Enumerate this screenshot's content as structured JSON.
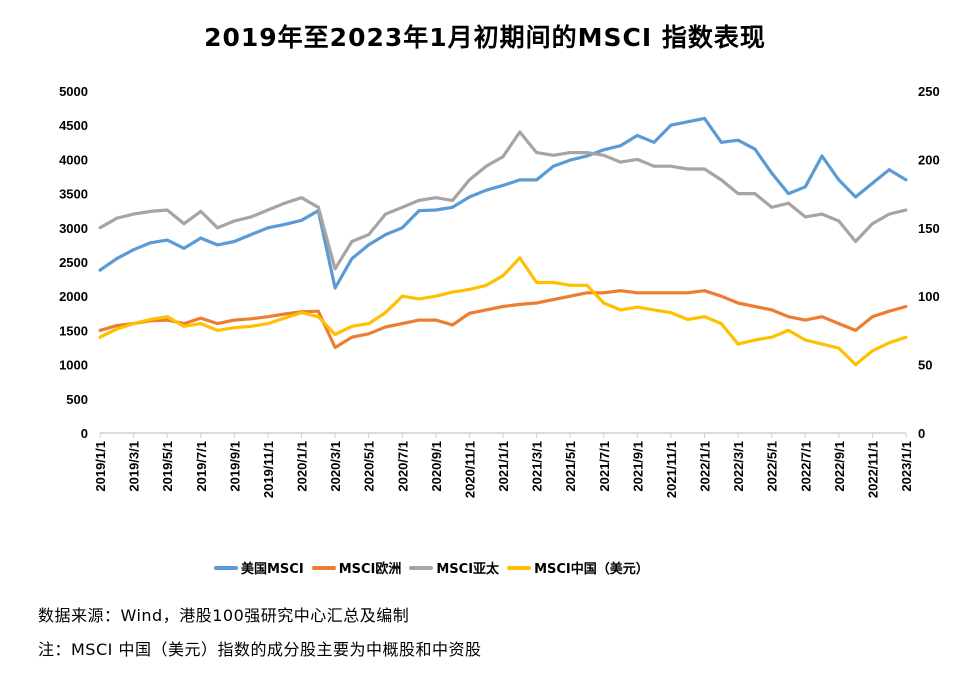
{
  "chart_data": {
    "type": "line",
    "title": "2019年至2023年1月初期间的MSCI 指数表现",
    "xlabel": "",
    "ylabel": "",
    "ylim_left": [
      0,
      5000
    ],
    "ylim_right": [
      0,
      250
    ],
    "left_ticks": [
      "0",
      "500",
      "1000",
      "1500",
      "2000",
      "2500",
      "3000",
      "3500",
      "4000",
      "4500",
      "5000"
    ],
    "right_ticks": [
      "0",
      "50",
      "100",
      "150",
      "200",
      "250"
    ],
    "x_tick_labels": [
      "2019/1/1",
      "2019/3/1",
      "2019/5/1",
      "2019/7/1",
      "2019/9/1",
      "2019/11/1",
      "2020/1/1",
      "2020/3/1",
      "2020/5/1",
      "2020/7/1",
      "2020/9/1",
      "2020/11/1",
      "2021/1/1",
      "2021/3/1",
      "2021/5/1",
      "2021/7/1",
      "2021/9/1",
      "2021/11/1",
      "2022/1/1",
      "2022/3/1",
      "2022/5/1",
      "2022/7/1",
      "2022/9/1",
      "2022/11/1",
      "2023/1/1"
    ],
    "grid": false,
    "legend_position": "bottom",
    "x": [
      "2019-01",
      "2019-02",
      "2019-03",
      "2019-04",
      "2019-05",
      "2019-06",
      "2019-07",
      "2019-08",
      "2019-09",
      "2019-10",
      "2019-11",
      "2019-12",
      "2020-01",
      "2020-02",
      "2020-03",
      "2020-04",
      "2020-05",
      "2020-06",
      "2020-07",
      "2020-08",
      "2020-09",
      "2020-10",
      "2020-11",
      "2020-12",
      "2021-01",
      "2021-02",
      "2021-03",
      "2021-04",
      "2021-05",
      "2021-06",
      "2021-07",
      "2021-08",
      "2021-09",
      "2021-10",
      "2021-11",
      "2021-12",
      "2022-01",
      "2022-02",
      "2022-03",
      "2022-04",
      "2022-05",
      "2022-06",
      "2022-07",
      "2022-08",
      "2022-09",
      "2022-10",
      "2022-11",
      "2022-12",
      "2023-01"
    ],
    "series": [
      {
        "name": "美国MSCI",
        "axis": "left",
        "color": "#5B9BD5",
        "values": [
          2380,
          2550,
          2680,
          2780,
          2820,
          2700,
          2850,
          2750,
          2800,
          2900,
          3000,
          3050,
          3110,
          3250,
          2120,
          2550,
          2750,
          2900,
          3000,
          3250,
          3260,
          3300,
          3450,
          3550,
          3620,
          3700,
          3700,
          3900,
          3990,
          4050,
          4140,
          4200,
          4350,
          4250,
          4500,
          4550,
          4600,
          4250,
          4280,
          4150,
          3800,
          3500,
          3600,
          4050,
          3700,
          3450,
          3650,
          3850,
          3700
        ]
      },
      {
        "name": "MSCI欧洲",
        "axis": "left",
        "color": "#ED7D31",
        "values": [
          1500,
          1570,
          1600,
          1640,
          1650,
          1600,
          1680,
          1600,
          1650,
          1670,
          1700,
          1740,
          1770,
          1780,
          1250,
          1400,
          1450,
          1550,
          1600,
          1650,
          1650,
          1580,
          1750,
          1800,
          1850,
          1880,
          1900,
          1950,
          2000,
          2050,
          2050,
          2080,
          2050,
          2050,
          2050,
          2050,
          2080,
          2000,
          1900,
          1850,
          1800,
          1700,
          1650,
          1700,
          1600,
          1500,
          1700,
          1780,
          1850
        ]
      },
      {
        "name": "MSCI亚太",
        "axis": "right",
        "color": "#A5A5A5",
        "values": [
          150,
          157,
          160,
          162,
          163,
          153,
          162,
          150,
          155,
          158,
          163,
          168,
          172,
          165,
          120,
          140,
          145,
          160,
          165,
          170,
          172,
          170,
          185,
          195,
          202,
          220,
          205,
          203,
          205,
          205,
          203,
          198,
          200,
          195,
          195,
          193,
          193,
          185,
          175,
          175,
          165,
          168,
          158,
          160,
          155,
          140,
          153,
          160,
          163
        ]
      },
      {
        "name": "MSCI中国（美元）",
        "axis": "right",
        "color": "#FFC000",
        "values": [
          70,
          76,
          80,
          83,
          85,
          78,
          80,
          75,
          77,
          78,
          80,
          84,
          88,
          85,
          72,
          78,
          80,
          88,
          100,
          98,
          100,
          103,
          105,
          108,
          115,
          128,
          110,
          110,
          108,
          108,
          95,
          90,
          92,
          90,
          88,
          83,
          85,
          80,
          65,
          68,
          70,
          75,
          68,
          65,
          62,
          50,
          60,
          66,
          70
        ]
      }
    ]
  },
  "footer": {
    "source": "数据来源：Wind，港股100强研究中心汇总及编制",
    "note": "注：MSCI 中国（美元）指数的成分股主要为中概股和中资股"
  }
}
